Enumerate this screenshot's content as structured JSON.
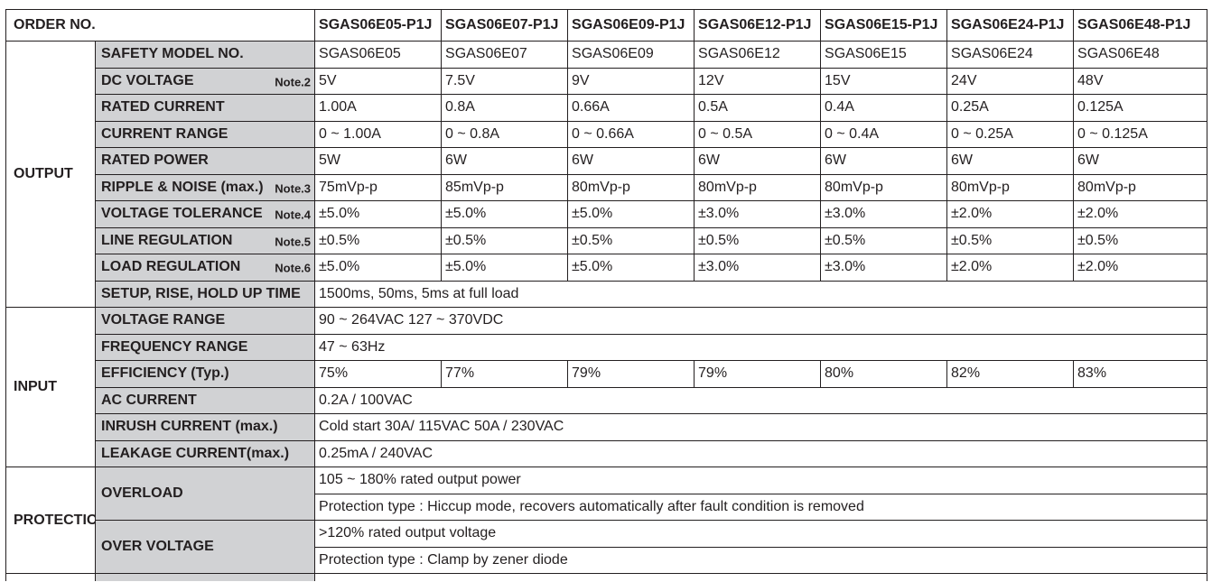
{
  "header": {
    "order_label": "ORDER NO.",
    "models": [
      "SGAS06E05-P1J",
      "SGAS06E07-P1J",
      "SGAS06E09-P1J",
      "SGAS06E12-P1J",
      "SGAS06E15-P1J",
      "SGAS06E24-P1J",
      "SGAS06E48-P1J"
    ]
  },
  "output": {
    "title": "OUTPUT",
    "rows": [
      {
        "label": "SAFETY MODEL NO.",
        "note": "",
        "values": [
          "SGAS06E05",
          "SGAS06E07",
          "SGAS06E09",
          "SGAS06E12",
          "SGAS06E15",
          "SGAS06E24",
          "SGAS06E48"
        ]
      },
      {
        "label": "DC VOLTAGE",
        "note": "Note.2",
        "values": [
          "5V",
          "7.5V",
          "9V",
          "12V",
          "15V",
          "24V",
          "48V"
        ]
      },
      {
        "label": "RATED CURRENT",
        "note": "",
        "values": [
          "1.00A",
          "0.8A",
          "0.66A",
          "0.5A",
          "0.4A",
          "0.25A",
          "0.125A"
        ]
      },
      {
        "label": "CURRENT RANGE",
        "note": "",
        "values": [
          "0 ~ 1.00A",
          "0 ~ 0.8A",
          "0 ~ 0.66A",
          "0 ~ 0.5A",
          "0 ~ 0.4A",
          "0 ~ 0.25A",
          "0 ~ 0.125A"
        ]
      },
      {
        "label": "RATED POWER",
        "note": "",
        "values": [
          "5W",
          "6W",
          "6W",
          "6W",
          "6W",
          "6W",
          "6W"
        ]
      },
      {
        "label": "RIPPLE & NOISE (max.)",
        "note": "Note.3",
        "values": [
          "75mVp-p",
          "85mVp-p",
          "80mVp-p",
          "80mVp-p",
          "80mVp-p",
          "80mVp-p",
          "80mVp-p"
        ]
      },
      {
        "label": "VOLTAGE TOLERANCE",
        "note": "Note.4",
        "values": [
          "±5.0%",
          "±5.0%",
          "±5.0%",
          "±3.0%",
          "±3.0%",
          "±2.0%",
          "±2.0%"
        ]
      },
      {
        "label": "LINE REGULATION",
        "note": "Note.5",
        "values": [
          "±0.5%",
          "±0.5%",
          "±0.5%",
          "±0.5%",
          "±0.5%",
          "±0.5%",
          "±0.5%"
        ]
      },
      {
        "label": "LOAD REGULATION",
        "note": "Note.6",
        "values": [
          "±5.0%",
          "±5.0%",
          "±5.0%",
          "±3.0%",
          "±3.0%",
          "±2.0%",
          "±2.0%"
        ]
      }
    ],
    "setup": {
      "label": "SETUP, RISE, HOLD UP TIME",
      "value": "1500ms, 50ms, 5ms  at full load"
    }
  },
  "input": {
    "title": "INPUT",
    "voltage_range": {
      "label": "VOLTAGE RANGE",
      "value": "90 ~ 264VAC    127 ~ 370VDC"
    },
    "frequency_range": {
      "label": "FREQUENCY RANGE",
      "value": "47 ~ 63Hz"
    },
    "efficiency": {
      "label": "EFFICIENCY (Typ.)",
      "values": [
        "75%",
        "77%",
        "79%",
        "79%",
        "80%",
        "82%",
        "83%"
      ]
    },
    "ac_current": {
      "label": "AC CURRENT",
      "value": "0.2A / 100VAC"
    },
    "inrush_current": {
      "label": "INRUSH CURRENT (max.)",
      "value": "Cold start 30A/ 115VAC    50A /  230VAC"
    },
    "leakage_current": {
      "label": "LEAKAGE CURRENT(max.)",
      "value": "0.25mA / 240VAC"
    }
  },
  "protection": {
    "title": "PROTECTION",
    "overload": {
      "label": "OVERLOAD",
      "lines": [
        "105 ~ 180% rated output power",
        "Protection type : Hiccup mode, recovers automatically after fault condition is removed"
      ]
    },
    "over_voltage": {
      "label": "OVER VOLTAGE",
      "lines": [
        ">120% rated output voltage",
        "Protection type : Clamp by zener diode"
      ]
    }
  }
}
